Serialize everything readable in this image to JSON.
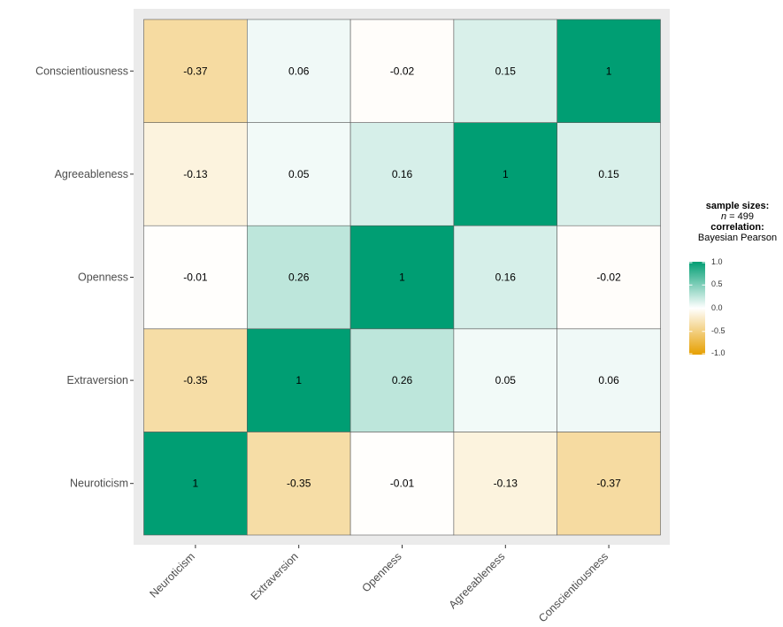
{
  "chart_data": {
    "type": "heatmap",
    "title": "",
    "xlabel": "",
    "ylabel": "",
    "x_categories": [
      "Neuroticism",
      "Extraversion",
      "Openness",
      "Agreeableness",
      "Conscientiousness"
    ],
    "y_categories": [
      "Neuroticism",
      "Extraversion",
      "Openness",
      "Agreeableness",
      "Conscientiousness"
    ],
    "values": [
      [
        1,
        -0.35,
        -0.01,
        -0.13,
        -0.37
      ],
      [
        -0.35,
        1,
        0.26,
        0.05,
        0.06
      ],
      [
        -0.01,
        0.26,
        1,
        0.16,
        -0.02
      ],
      [
        -0.13,
        0.05,
        0.16,
        1,
        0.15
      ],
      [
        -0.37,
        0.06,
        -0.02,
        0.15,
        1
      ]
    ],
    "cell_labels": [
      [
        "1",
        "-0.35",
        "-0.01",
        "-0.13",
        "-0.37"
      ],
      [
        "-0.35",
        "1",
        "0.26",
        "0.05",
        "0.06"
      ],
      [
        "-0.01",
        "0.26",
        "1",
        "0.16",
        "-0.02"
      ],
      [
        "-0.13",
        "0.05",
        "0.16",
        "1",
        "0.15"
      ],
      [
        "-0.37",
        "0.06",
        "-0.02",
        "0.15",
        "1"
      ]
    ],
    "legend": {
      "title_line1": "sample sizes:",
      "n_symbol": "n",
      "n_value": " = 499",
      "title_line3": "correlation:",
      "title_line4": "Bayesian Pearson",
      "ticks": [
        "1.0",
        "0.5",
        "0.0",
        "-0.5",
        "-1.0"
      ],
      "tick_values": [
        1.0,
        0.5,
        0.0,
        -0.5,
        -1.0
      ],
      "placement": "right"
    },
    "color_scale": {
      "low": "#E69F00",
      "mid": "#FFFFFF",
      "high": "#009E73",
      "limits": [
        -1,
        1
      ]
    },
    "panel_background": "#EBEBEB",
    "grid": false
  }
}
